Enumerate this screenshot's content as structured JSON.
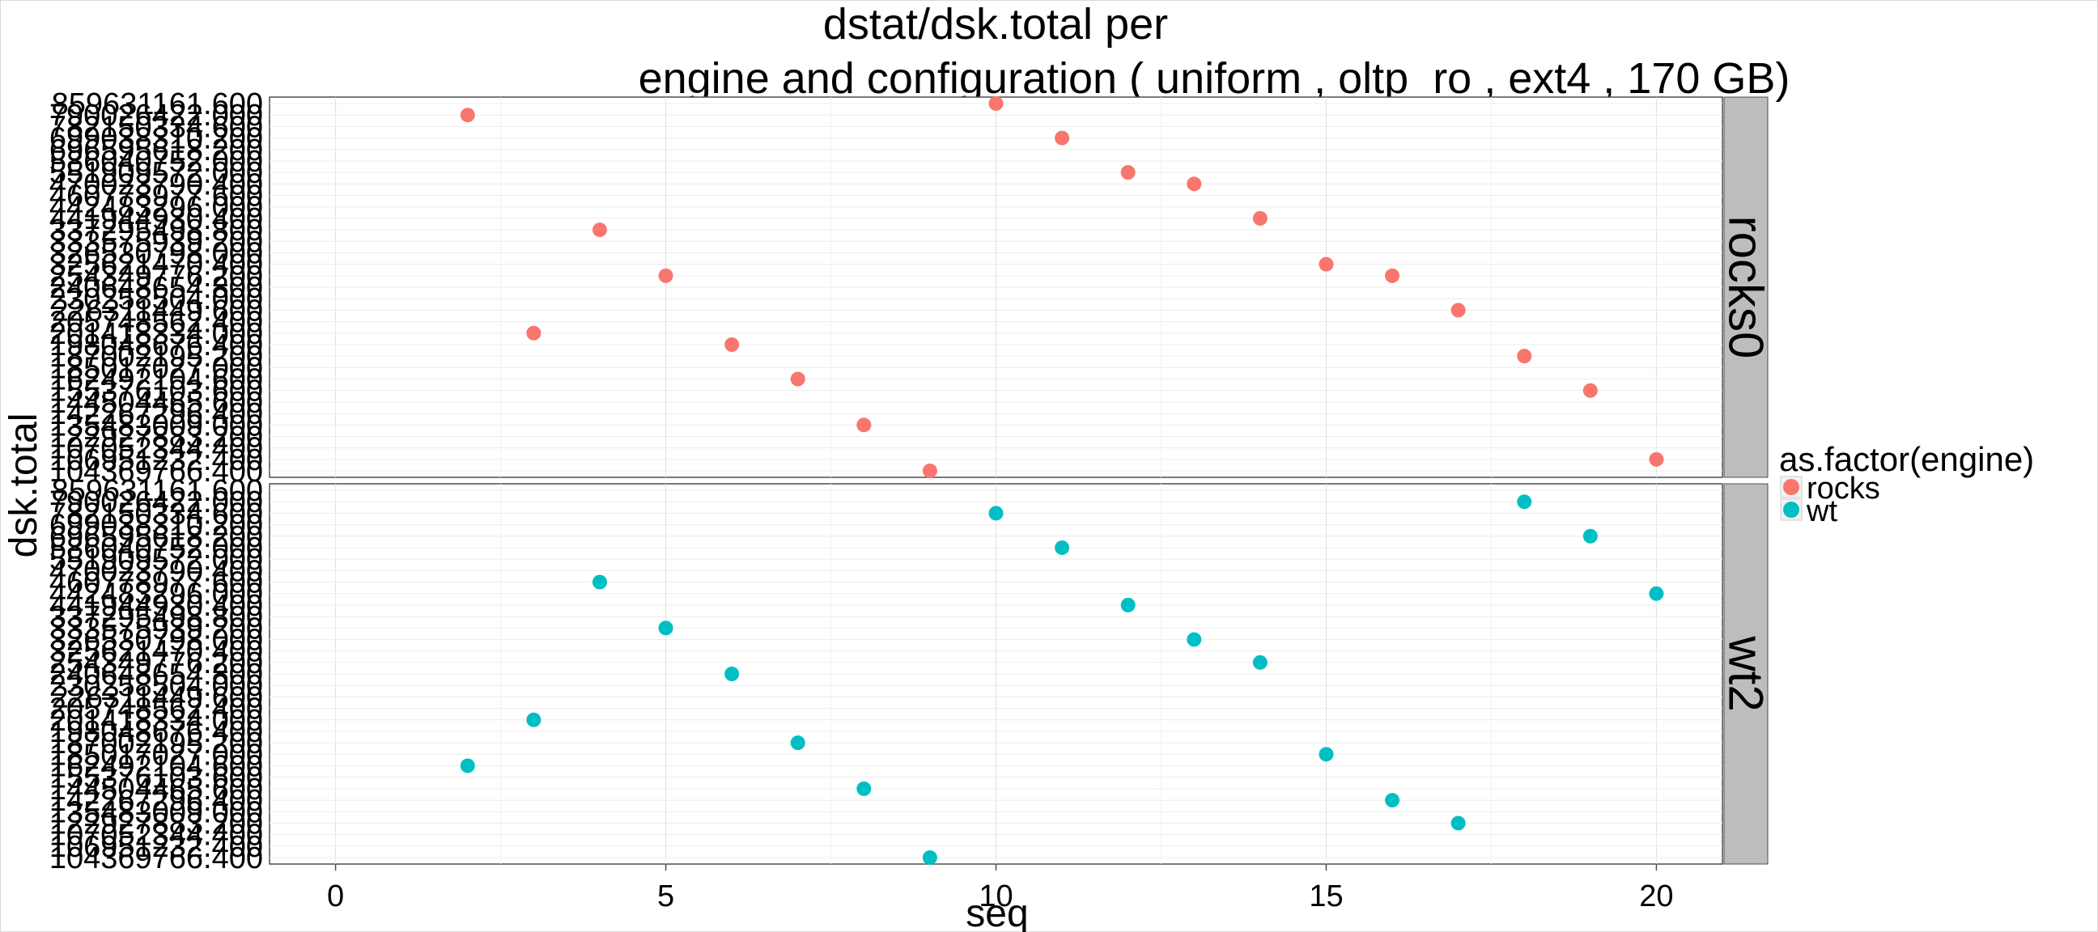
{
  "chart_data": {
    "type": "scatter",
    "title_line1": "dstat/dsk.total per",
    "title_line2": "engine and configuration ( uniform , oltp_ro , ext4 ,  170 GB)",
    "xlabel": "seq",
    "ylabel": "dsk.total",
    "x_ticks": [
      "0",
      "5",
      "10",
      "15",
      "20"
    ],
    "x_tick_values": [
      0,
      5,
      10,
      15,
      20
    ],
    "xlim": [
      -1,
      21
    ],
    "grid": true,
    "legend": {
      "title": "as.factor(engine)",
      "placement": "right",
      "entries": [
        {
          "label": "rocks",
          "color": "#F8766D"
        },
        {
          "label": "wt",
          "color": "#00BFC4"
        }
      ]
    },
    "y_categories": [
      "104369766.400",
      "106951232.400",
      "107052344.400",
      "122927883.200",
      "135483009.000",
      "142267296.400",
      "144504465.600",
      "155376103.600",
      "162492104.600",
      "185017027.000",
      "187002195.200",
      "198048676.400",
      "201418334.000",
      "205748562.400",
      "226311449.600",
      "230258504.000",
      "240648654.800",
      "254349776.200",
      "325621470.400",
      "326530798.000",
      "333575939.200",
      "337295498.800",
      "441944930.400",
      "442483296.000",
      "460778977.600",
      "470023790.400",
      "551909572.000",
      "586040752.000",
      "696595618.200",
      "699038310.200",
      "782150334.600",
      "790026422.000",
      "859631161.600"
    ],
    "tick_label_color": "#4d4d4d",
    "panels": [
      {
        "strip": "rocks0",
        "color": "#F8766D",
        "points": [
          {
            "x": 2,
            "y": "790026422.000"
          },
          {
            "x": 3,
            "y": "201418334.000"
          },
          {
            "x": 4,
            "y": "337295498.800"
          },
          {
            "x": 5,
            "y": "254349776.200"
          },
          {
            "x": 6,
            "y": "198048676.400"
          },
          {
            "x": 7,
            "y": "162492104.600"
          },
          {
            "x": 8,
            "y": "135483009.000"
          },
          {
            "x": 9,
            "y": "104369766.400"
          },
          {
            "x": 10,
            "y": "859631161.600"
          },
          {
            "x": 11,
            "y": "699038310.200"
          },
          {
            "x": 12,
            "y": "551909572.000"
          },
          {
            "x": 13,
            "y": "470023790.400"
          },
          {
            "x": 14,
            "y": "441944930.400"
          },
          {
            "x": 15,
            "y": "325621470.400"
          },
          {
            "x": 16,
            "y": "254349776.200"
          },
          {
            "x": 17,
            "y": "226311449.600"
          },
          {
            "x": 18,
            "y": "187002195.200"
          },
          {
            "x": 19,
            "y": "155376103.600"
          },
          {
            "x": 20,
            "y": "106951232.400"
          }
        ]
      },
      {
        "strip": "wt2",
        "color": "#00BFC4",
        "points": [
          {
            "x": 2,
            "y": "162492104.600"
          },
          {
            "x": 3,
            "y": "201418334.000"
          },
          {
            "x": 4,
            "y": "460778977.600"
          },
          {
            "x": 5,
            "y": "333575939.200"
          },
          {
            "x": 6,
            "y": "240648654.800"
          },
          {
            "x": 7,
            "y": "187002195.200"
          },
          {
            "x": 8,
            "y": "144504465.600"
          },
          {
            "x": 9,
            "y": "104369766.400"
          },
          {
            "x": 10,
            "y": "782150334.600"
          },
          {
            "x": 11,
            "y": "586040752.000"
          },
          {
            "x": 12,
            "y": "441944930.400"
          },
          {
            "x": 13,
            "y": "326530798.000"
          },
          {
            "x": 14,
            "y": "254349776.200"
          },
          {
            "x": 15,
            "y": "185017027.000"
          },
          {
            "x": 16,
            "y": "142267296.400"
          },
          {
            "x": 17,
            "y": "122927883.200"
          },
          {
            "x": 18,
            "y": "790026422.000"
          },
          {
            "x": 19,
            "y": "696595618.200"
          },
          {
            "x": 20,
            "y": "442483296.000"
          }
        ]
      }
    ]
  }
}
